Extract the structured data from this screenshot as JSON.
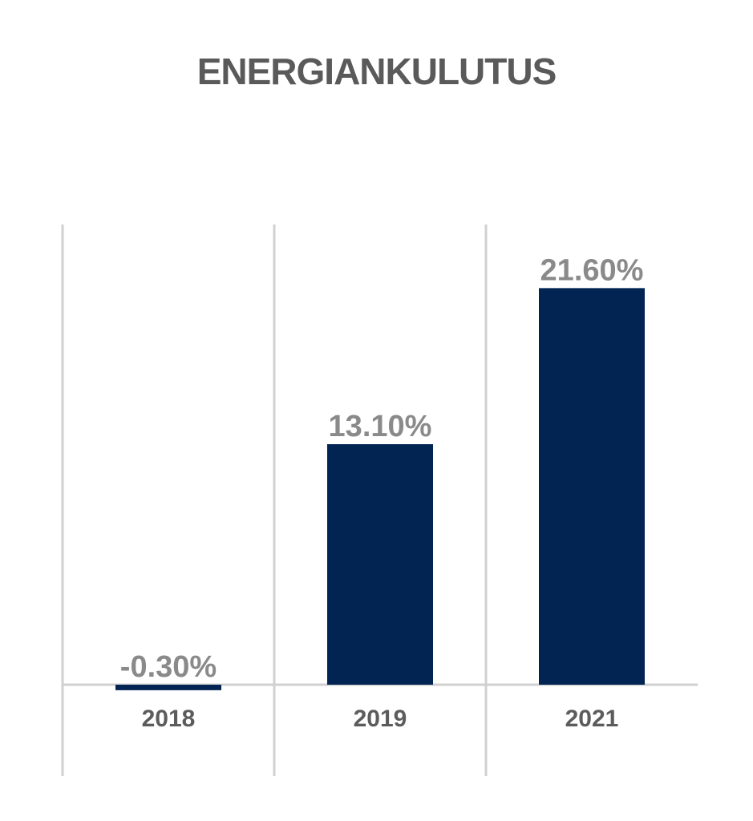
{
  "chart_data": {
    "type": "bar",
    "title": "ENERGIANKULUTUS",
    "categories": [
      "2018",
      "2019",
      "2021"
    ],
    "values": [
      -0.3,
      13.1,
      21.6
    ],
    "value_labels": [
      "-0.30%",
      "13.10%",
      "21.60%"
    ],
    "ylim": [
      -1,
      27
    ],
    "grid": true,
    "bar_color": "#022453",
    "grid_color": "#d0d0d0",
    "label_color": "#8a8a8a"
  }
}
